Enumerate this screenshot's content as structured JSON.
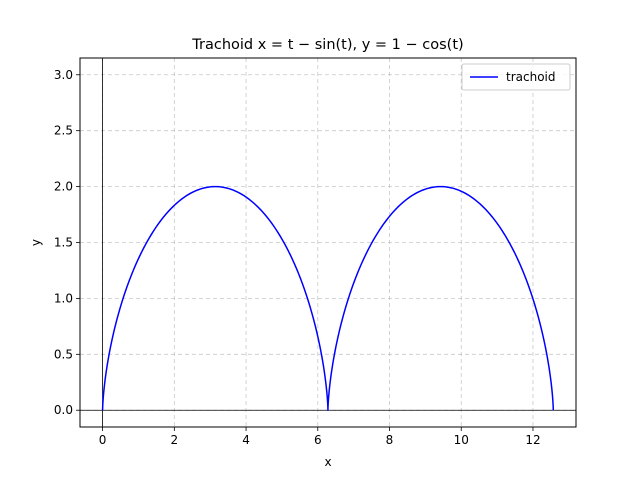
{
  "chart_data": {
    "type": "line",
    "title": "Trachoid x = t − sin(t), y = 1 − cos(t)",
    "xlabel": "x",
    "ylabel": "y",
    "xlim": [
      -0.63,
      13.2
    ],
    "ylim": [
      -0.15,
      3.15
    ],
    "xticks": [
      0,
      2,
      4,
      6,
      8,
      10,
      12
    ],
    "xtick_labels": [
      "0",
      "2",
      "4",
      "6",
      "8",
      "10",
      "12"
    ],
    "yticks": [
      0.0,
      0.5,
      1.0,
      1.5,
      2.0,
      2.5,
      3.0
    ],
    "ytick_labels": [
      "0.0",
      "0.5",
      "1.0",
      "1.5",
      "2.0",
      "2.5",
      "3.0"
    ],
    "grid": true,
    "legend_position": "upper right",
    "series": [
      {
        "name": "trachoid",
        "color": "#0000ff",
        "t_range": [
          0,
          12.566
        ],
        "x": [
          0,
          0.026,
          0.079,
          0.193,
          0.441,
          0.866,
          1.376,
          2.0,
          2.617,
          3.142,
          3.667,
          4.283,
          4.908,
          5.418,
          5.842,
          6.09,
          6.205,
          6.257,
          6.283,
          6.309,
          6.362,
          6.476,
          6.724,
          7.149,
          7.659,
          8.283,
          8.9,
          9.425,
          9.95,
          10.566,
          11.191,
          11.7,
          12.125,
          12.373,
          12.488,
          12.54,
          12.566
        ],
        "y": [
          0,
          0.119,
          0.293,
          0.5,
          0.793,
          1.155,
          1.496,
          1.809,
          1.968,
          2.0,
          1.968,
          1.809,
          1.496,
          1.155,
          0.793,
          0.5,
          0.293,
          0.119,
          0,
          0.119,
          0.293,
          0.5,
          0.793,
          1.155,
          1.496,
          1.809,
          1.968,
          2.0,
          1.968,
          1.809,
          1.496,
          1.155,
          0.793,
          0.5,
          0.293,
          0.119,
          0
        ]
      }
    ],
    "reference_lines": {
      "x": 0,
      "y": 0,
      "color": "#000000"
    }
  }
}
